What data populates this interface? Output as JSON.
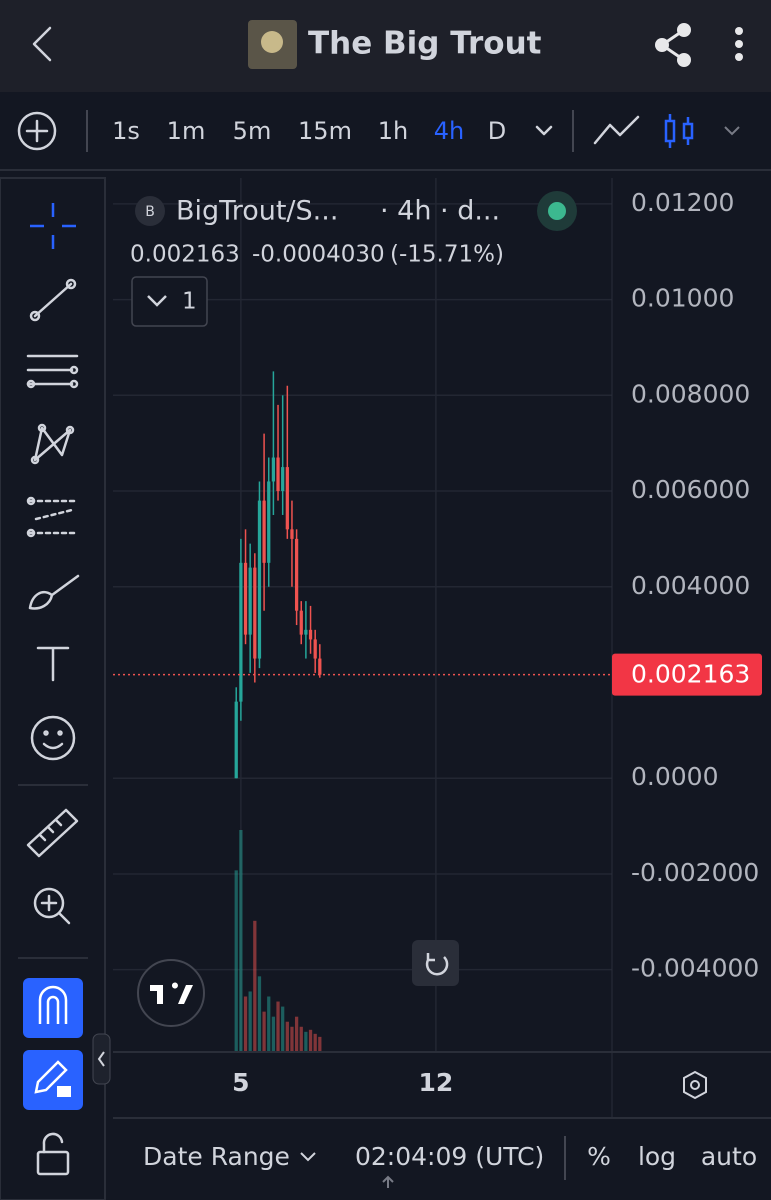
{
  "header": {
    "title": "The Big Trout"
  },
  "toolbar": {
    "intervals": [
      "1s",
      "1m",
      "5m",
      "15m",
      "1h",
      "4h",
      "D"
    ]
  },
  "chart_data": {
    "type": "candlestick",
    "title": "BigTrout/S...",
    "subtitle": "· 4h · d...",
    "symbol_badge": "B",
    "change_label": "-0.0004030",
    "change_pct_label": "(-15.71%)",
    "collapse_label": "1",
    "last_value": 0.002163,
    "x": [
      4.833,
      5.0,
      5.167,
      5.333,
      5.5,
      5.667,
      5.833,
      6.0,
      6.167,
      6.333,
      6.5,
      6.667,
      6.833,
      7.0,
      7.167,
      7.333,
      7.5,
      7.667,
      7.833
    ],
    "open": [
      0.0,
      0.0016,
      0.0045,
      0.003,
      0.0044,
      0.0025,
      0.0058,
      0.0045,
      0.0062,
      0.0067,
      0.006,
      0.0065,
      0.0052,
      0.005,
      0.0035,
      0.003,
      0.0031,
      0.0029,
      0.0025
    ],
    "high": [
      0.0019,
      0.005,
      0.0052,
      0.0049,
      0.0047,
      0.0062,
      0.0072,
      0.0067,
      0.0085,
      0.0078,
      0.008,
      0.0082,
      0.0058,
      0.0052,
      0.0037,
      0.0037,
      0.0036,
      0.0031,
      0.0028
    ],
    "low": [
      0.0,
      0.0012,
      0.0028,
      0.0022,
      0.002,
      0.0023,
      0.0035,
      0.004,
      0.0055,
      0.0058,
      0.0055,
      0.005,
      0.004,
      0.0032,
      0.0028,
      0.0025,
      0.0026,
      0.0022,
      0.0021
    ],
    "close": [
      0.0016,
      0.0045,
      0.003,
      0.0044,
      0.0025,
      0.0058,
      0.0045,
      0.0062,
      0.0067,
      0.006,
      0.0065,
      0.0052,
      0.005,
      0.0035,
      0.003,
      0.0031,
      0.0029,
      0.0025,
      0.002163
    ],
    "volume": [
      180,
      220,
      55,
      60,
      130,
      75,
      40,
      55,
      35,
      50,
      45,
      30,
      25,
      35,
      25,
      20,
      22,
      18,
      15
    ],
    "up_color": "#26a69a",
    "down_color": "#ef5350",
    "xlim": [
      0.41,
      18.32
    ],
    "xticks": [
      5,
      12
    ],
    "ylim": [
      -0.00572,
      0.01254
    ],
    "yticks": [
      {
        "value": 0.012,
        "label": "0.01200"
      },
      {
        "value": 0.01,
        "label": "0.01000"
      },
      {
        "value": 0.008,
        "label": "0.008000"
      },
      {
        "value": 0.006,
        "label": "0.006000"
      },
      {
        "value": 0.004,
        "label": "0.004000"
      },
      {
        "value": 0,
        "label": "0.0000"
      },
      {
        "value": -0.002,
        "label": "-0.002000"
      },
      {
        "value": -0.004,
        "label": "-0.004000"
      }
    ],
    "grid": true
  },
  "footer": {
    "date_range": "Date Range",
    "time": "02:04:09 (UTC)",
    "percent": "%",
    "log": "log",
    "auto": "auto"
  }
}
